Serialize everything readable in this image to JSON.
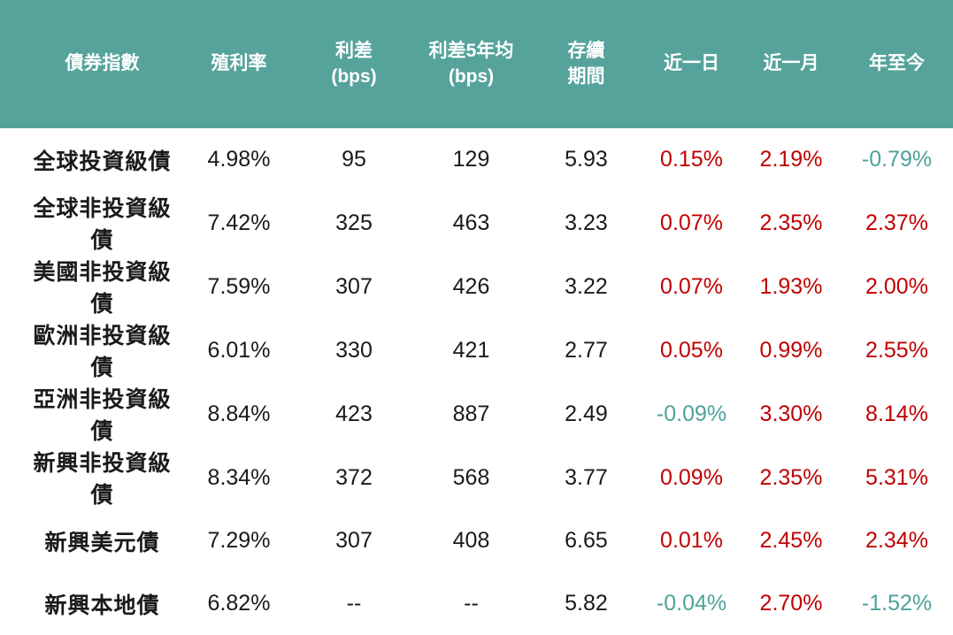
{
  "colors": {
    "header-bg": "#56a39c",
    "header-text": "#ffffff",
    "body-text": "#1a1a1a",
    "positive": "#c00000",
    "negative": "#4da29a",
    "body-bg": "#ffffff"
  },
  "header_labels": [
    "債券指數",
    "殖利率",
    "利差\n(bps)",
    "利差5年均\n(bps)",
    "存續\n期間",
    "近一日",
    "近一月",
    "年至今"
  ],
  "chart_data": {
    "type": "table",
    "title": "",
    "columns": [
      "債券指數",
      "殖利率",
      "利差(bps)",
      "利差5年均(bps)",
      "存續期間",
      "近一日",
      "近一月",
      "年至今"
    ],
    "rows": [
      [
        "全球投資級債",
        "4.98%",
        "95",
        "129",
        "5.93",
        "0.15%",
        "2.19%",
        "-0.79%"
      ],
      [
        "全球非投資級債",
        "7.42%",
        "325",
        "463",
        "3.23",
        "0.07%",
        "2.35%",
        "2.37%"
      ],
      [
        "美國非投資級債",
        "7.59%",
        "307",
        "426",
        "3.22",
        "0.07%",
        "1.93%",
        "2.00%"
      ],
      [
        "歐洲非投資級債",
        "6.01%",
        "330",
        "421",
        "2.77",
        "0.05%",
        "0.99%",
        "2.55%"
      ],
      [
        "亞洲非投資級債",
        "8.84%",
        "423",
        "887",
        "2.49",
        "-0.09%",
        "3.30%",
        "8.14%"
      ],
      [
        "新興非投資級債",
        "8.34%",
        "372",
        "568",
        "3.77",
        "0.09%",
        "2.35%",
        "5.31%"
      ],
      [
        "新興美元債",
        "7.29%",
        "307",
        "408",
        "6.65",
        "0.01%",
        "2.45%",
        "2.34%"
      ],
      [
        "新興本地債",
        "6.82%",
        "--",
        "--",
        "5.82",
        "-0.04%",
        "2.70%",
        "-1.52%"
      ]
    ],
    "legend": {
      "positive_change_color": "#c00000",
      "negative_change_color": "#4da29a"
    }
  }
}
